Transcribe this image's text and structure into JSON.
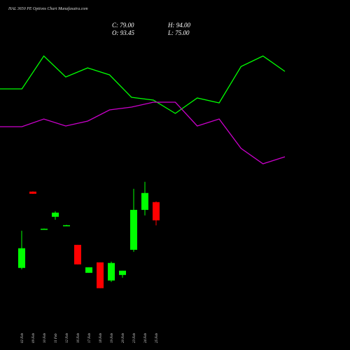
{
  "chart_data": [
    {
      "type": "candlestick",
      "title": "HAL 3650 PE Options Chart Munafasutra.com",
      "header": [
        "C: 79.00",
        "H: 94.00",
        "O: 93.45",
        "L: 75.00"
      ],
      "categories": [
        "02 Feb",
        "09 Feb",
        "10 Feb",
        "11 Feb",
        "12 Feb",
        "16 Feb",
        "17 Feb",
        "18 Feb",
        "19 Feb",
        "20 Feb",
        "23 Feb",
        "24 Feb",
        "25 Feb"
      ],
      "open": [
        41.2,
        101.8,
        72.3,
        81.8,
        75.1,
        59.5,
        37.3,
        45.6,
        31.2,
        35.6,
        55.6,
        87.3,
        93.45
      ],
      "high": [
        70.7,
        102.0,
        72.5,
        86.2,
        75.4,
        59.5,
        41.7,
        45.6,
        46.2,
        39.0,
        104.0,
        109.6,
        94.0
      ],
      "low": [
        40.1,
        100.0,
        72.0,
        79.5,
        74.8,
        44.0,
        37.3,
        25.1,
        30.1,
        33.4,
        54.0,
        82.9,
        75.0
      ],
      "close": [
        56.8,
        100.1,
        72.3,
        85.1,
        75.1,
        44.0,
        41.7,
        25.1,
        45.1,
        39.0,
        87.3,
        100.7,
        79.0
      ],
      "up_color": "#00ff00",
      "down_color": "#ff0000",
      "ylim": [
        -24,
        254
      ]
    },
    {
      "type": "line",
      "series": [
        {
          "color": "#00ff00",
          "values": [
            173,
            173,
            220,
            190,
            203,
            193,
            161,
            157,
            138,
            160,
            153,
            205,
            220,
            198
          ]
        },
        {
          "color": "#cc00cc",
          "values": [
            119,
            119,
            130,
            120,
            127,
            143,
            147,
            154,
            154,
            120,
            130,
            88,
            66,
            76
          ]
        }
      ],
      "ylim": [
        0,
        300
      ]
    }
  ]
}
